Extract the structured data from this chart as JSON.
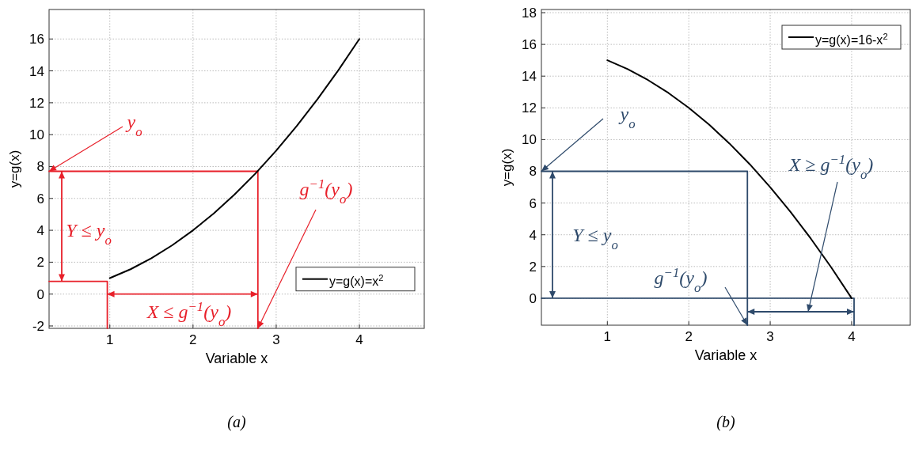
{
  "chart_data": [
    {
      "type": "line",
      "xlabel": "Variable x",
      "ylabel": "y=g(x)",
      "xlim": [
        0.27,
        4.78
      ],
      "ylim": [
        -2.15,
        17.85
      ],
      "xticks": [
        1,
        2,
        3,
        4
      ],
      "yticks": [
        -2,
        0,
        2,
        4,
        6,
        8,
        10,
        12,
        14,
        16
      ],
      "grid": true,
      "legend": "bottom right",
      "series": [
        {
          "name": "y=g(x)=x$^{2}$",
          "color": "#000000",
          "x": [
            1,
            1.25,
            1.5,
            1.75,
            2,
            2.25,
            2.5,
            2.75,
            3,
            3.25,
            3.5,
            3.75,
            4
          ],
          "values": [
            1,
            1.56,
            2.25,
            3.06,
            4,
            5.06,
            6.25,
            7.56,
            9,
            10.56,
            12.25,
            14.06,
            16
          ]
        },
        {
          "color": "#e8202a",
          "x": [
            0.27,
            2.78,
            2.78
          ],
          "values": [
            7.7,
            7.7,
            -2.15
          ]
        },
        {
          "color": "#e8202a",
          "x": [
            0.27,
            0.97,
            0.97
          ],
          "values": [
            0.8,
            0.8,
            -2.15
          ]
        }
      ],
      "annotations": [
        {
          "text": "y$_{o}$",
          "x": 0.27,
          "y": 7.7
        },
        "Y ≤ y$_{o}$",
        "X ≤ g$^{−1}$(y$_{o}$)",
        {
          "text": "g$^{−1}$(y$_{o}$)",
          "x": 2.78,
          "y": -2.15
        },
        "(a)"
      ]
    },
    {
      "type": "line",
      "xlabel": "Variable x",
      "ylabel": "y=g(x)",
      "xlim": [
        0.19,
        4.72
      ],
      "ylim": [
        -1.7,
        18.2
      ],
      "xticks": [
        1,
        2,
        3,
        4
      ],
      "yticks": [
        0,
        2,
        4,
        6,
        8,
        10,
        12,
        14,
        16,
        18
      ],
      "grid": true,
      "legend": "top right",
      "series": [
        {
          "name": "y=g(x)=16-x$^{2}$",
          "color": "#000000",
          "x": [
            1,
            1.25,
            1.5,
            1.75,
            2,
            2.25,
            2.5,
            2.75,
            3,
            3.25,
            3.5,
            3.75,
            4
          ],
          "values": [
            15,
            14.44,
            13.75,
            12.94,
            12,
            10.94,
            9.75,
            8.44,
            7,
            5.44,
            3.75,
            1.94,
            0
          ]
        },
        {
          "color": "#2e4a6b",
          "x": [
            0.19,
            2.72,
            2.72
          ],
          "values": [
            8,
            8,
            -1.7
          ]
        },
        {
          "color": "#2e4a6b",
          "x": [
            0.19,
            4.03,
            4.03
          ],
          "values": [
            0,
            0,
            -1.7
          ]
        }
      ],
      "annotations": [
        {
          "text": "y$_{o}$",
          "x": 0.19,
          "y": 8
        },
        "Y ≤ y$_{o}$",
        {
          "text": "g$^{−1}$(y$_{o}$)",
          "x": 2.72,
          "y": -1.7
        },
        "X ≥ g$^{−1}$(y$_{o}$)",
        "(b)"
      ]
    }
  ]
}
